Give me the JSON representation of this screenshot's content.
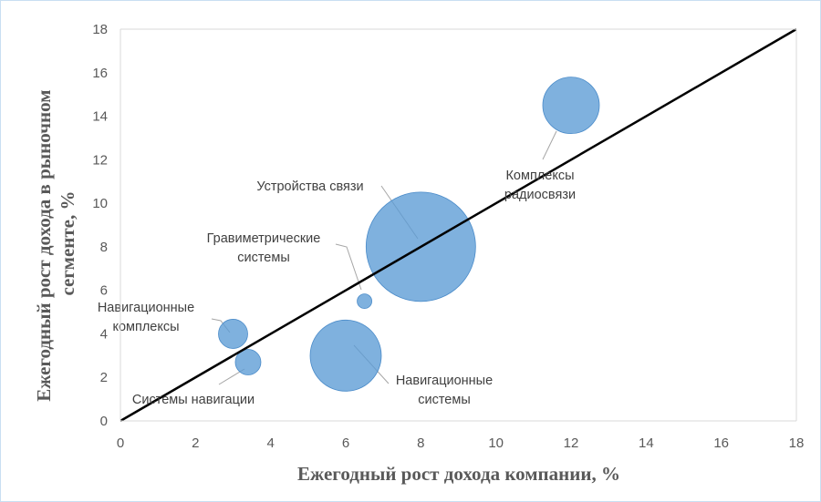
{
  "chart_data": {
    "type": "bubble",
    "xlabel": "Ежегодный рост дохода компании, %",
    "ylabel": "Ежегодный рост дохода в рыночном сегменте, %",
    "xlim": [
      0,
      18
    ],
    "ylim": [
      0,
      18
    ],
    "x_ticks": [
      "0",
      "2",
      "4",
      "6",
      "8",
      "10",
      "12",
      "14",
      "16",
      "18"
    ],
    "y_ticks": [
      "0",
      "2",
      "4",
      "6",
      "8",
      "10",
      "12",
      "14",
      "16",
      "18"
    ],
    "reference_line": {
      "from": [
        0,
        0
      ],
      "to": [
        18,
        18
      ],
      "color": "#000000"
    },
    "bubble_color": "#5b9bd5",
    "grid": false,
    "points": [
      {
        "label": [
          "Комплексы",
          "радиосвязи"
        ],
        "x": 12,
        "y": 14.5,
        "r": 31
      },
      {
        "label": [
          "Устройства связи"
        ],
        "x": 8,
        "y": 8,
        "r": 60
      },
      {
        "label": [
          "Гравиметрические",
          "системы"
        ],
        "x": 6.5,
        "y": 5.5,
        "r": 8
      },
      {
        "label": [
          "Навигационные",
          "комплексы"
        ],
        "x": 3,
        "y": 4,
        "r": 16
      },
      {
        "label": [
          "Системы навигации"
        ],
        "x": 3.4,
        "y": 2.7,
        "r": 14
      },
      {
        "label": [
          "Навигационные",
          "системы"
        ],
        "x": 6,
        "y": 3,
        "r": 39
      }
    ]
  }
}
